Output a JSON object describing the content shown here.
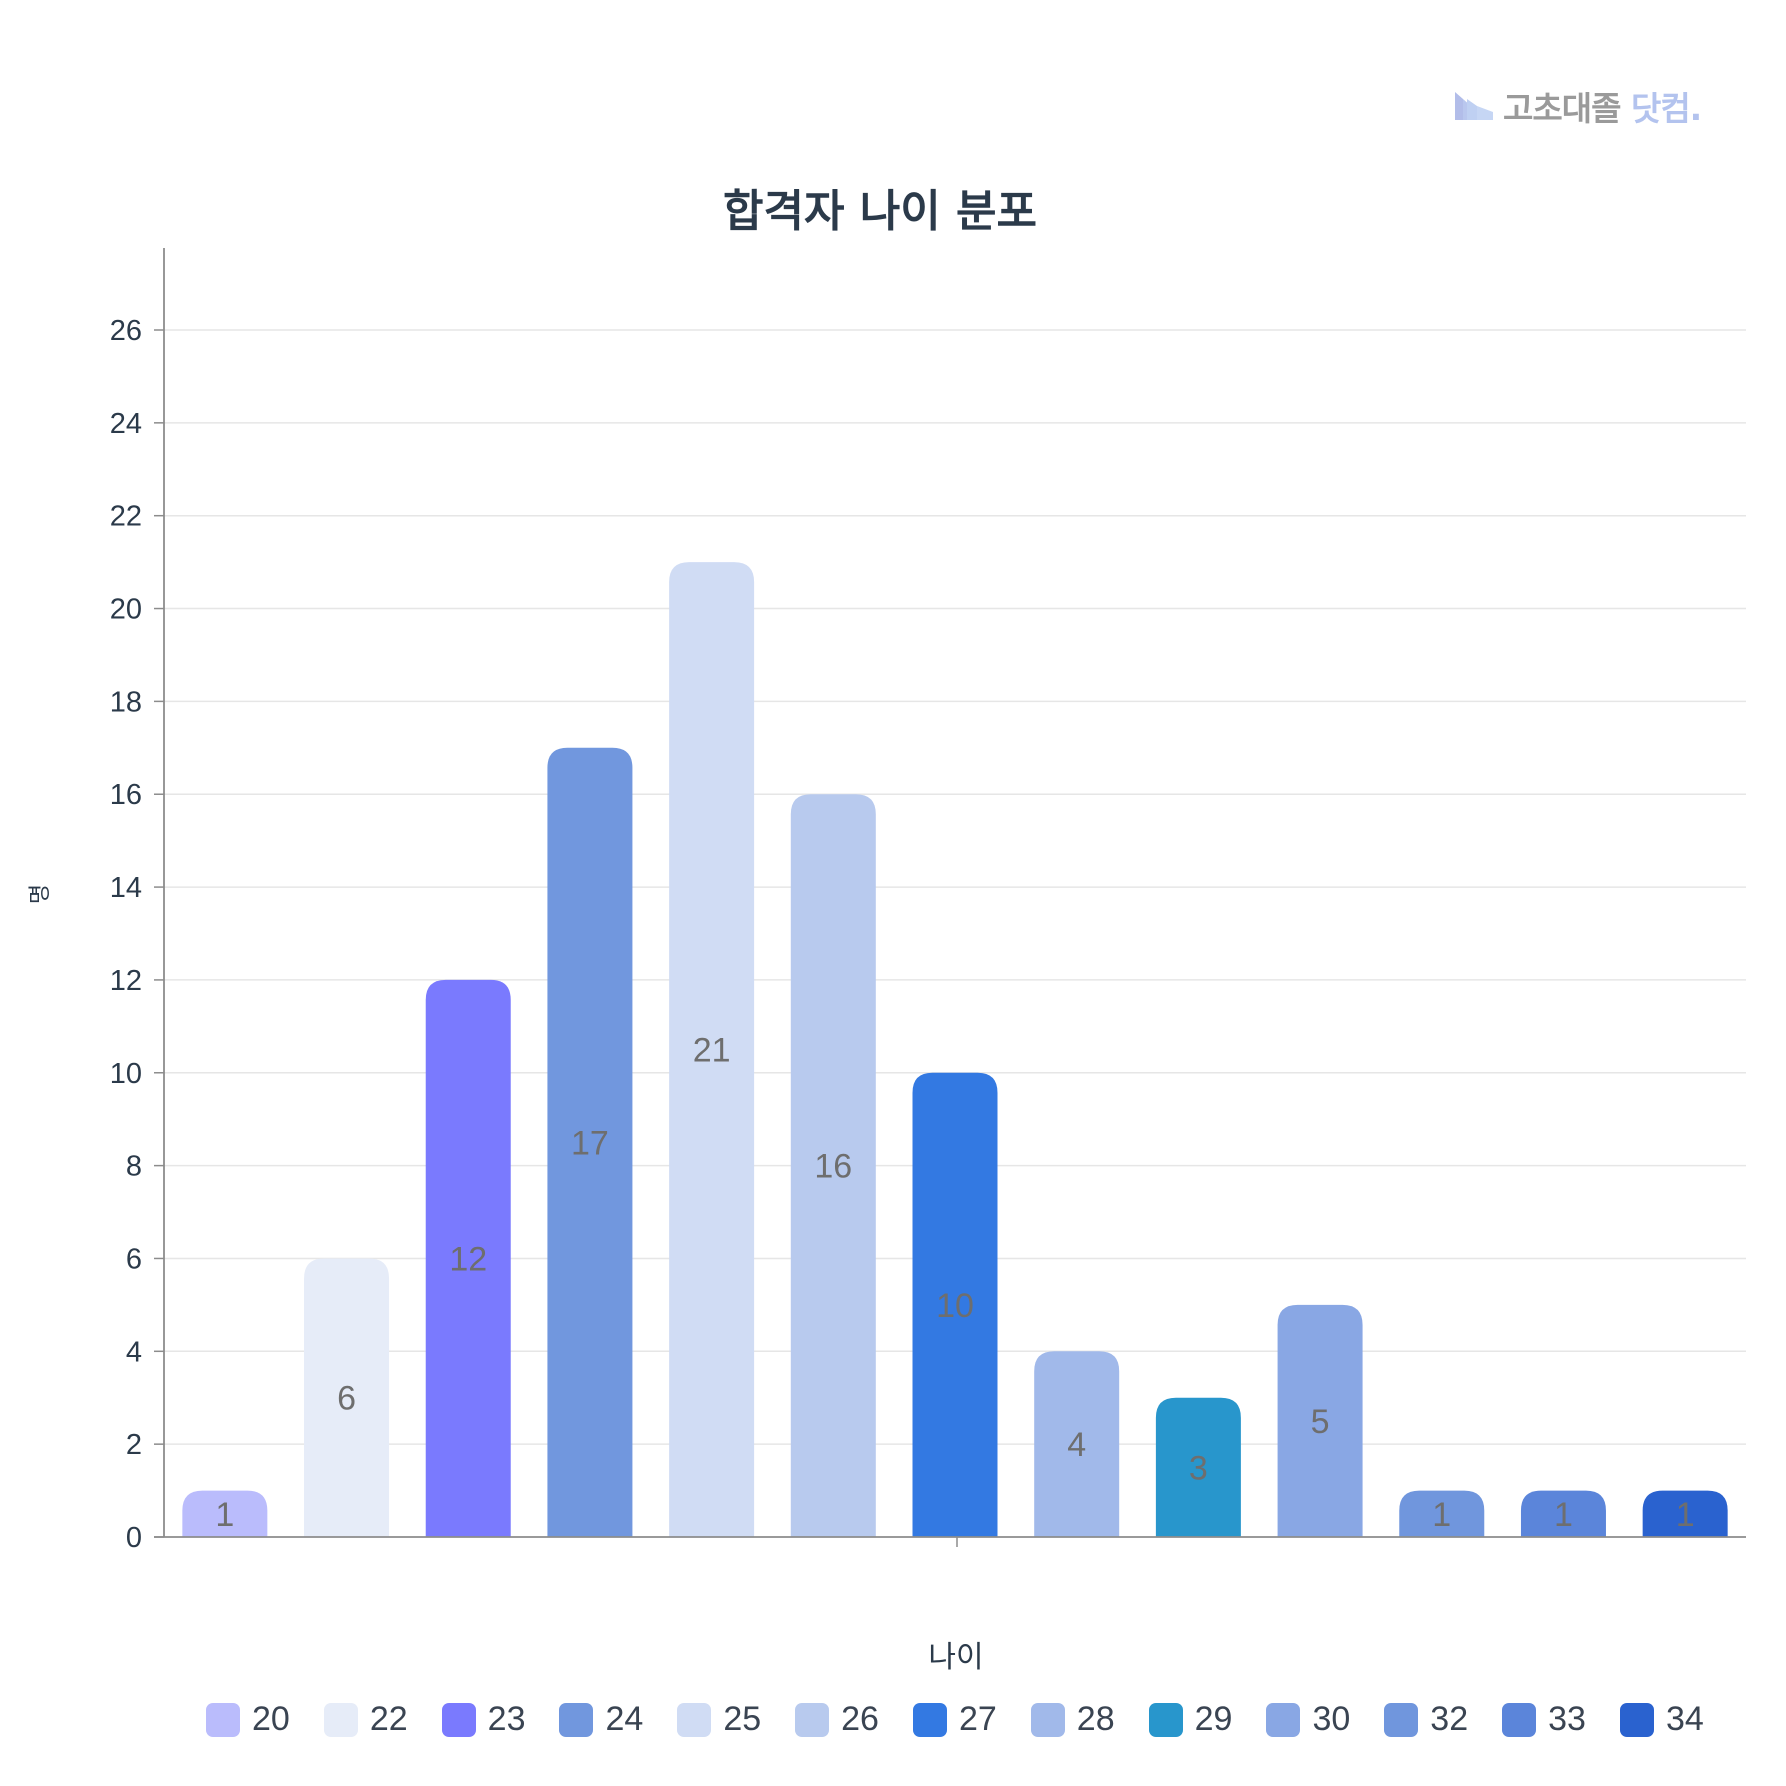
{
  "logo": {
    "text_main": "고초대졸",
    "text_accent": "닷컴.",
    "icon": "factory-icon"
  },
  "chart_data": {
    "type": "bar",
    "title": "합격자 나이 분포",
    "xlabel": "나이",
    "ylabel": "명",
    "categories": [
      "20",
      "22",
      "23",
      "24",
      "25",
      "26",
      "27",
      "28",
      "29",
      "30",
      "32",
      "33",
      "34"
    ],
    "values": [
      1,
      6,
      12,
      17,
      21,
      16,
      10,
      4,
      3,
      5,
      1,
      1,
      1
    ],
    "colors": [
      "#babcfc",
      "#e6ecf8",
      "#7a7afe",
      "#7197de",
      "#d0dcf4",
      "#b8caee",
      "#3379e2",
      "#a1b9ea",
      "#2896cc",
      "#89a7e4",
      "#7096dd",
      "#5b85da",
      "#2a62cf"
    ],
    "ylim": [
      0,
      27.6
    ],
    "yticks": [
      0,
      2,
      4,
      6,
      8,
      10,
      12,
      14,
      16,
      18,
      20,
      22,
      24,
      26
    ],
    "grid": true,
    "legend_position": "bottom",
    "data_labels": true
  }
}
